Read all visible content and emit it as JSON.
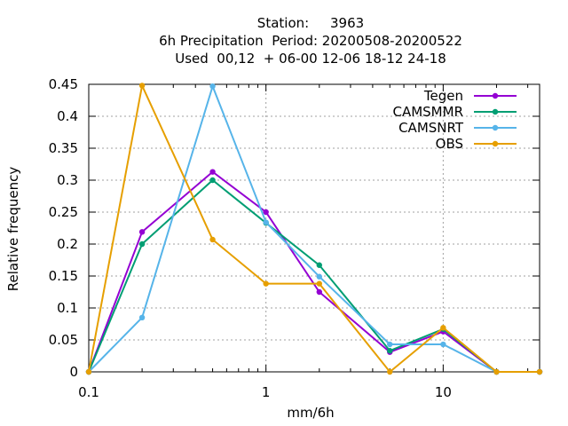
{
  "chart_data": {
    "type": "line",
    "title_lines": [
      "Station:     3963",
      "6h Precipitation  Period: 20200508-20200522",
      "Used  00,12  + 06-00 12-06 18-12 24-18"
    ],
    "xlabel": "mm/6h",
    "ylabel": "Relative frequency",
    "xscale": "log",
    "xlim": [
      0.1,
      35
    ],
    "ylim": [
      0,
      0.45
    ],
    "xticks": [
      0.1,
      1,
      10
    ],
    "xtick_labels": [
      "0.1",
      "1",
      "10"
    ],
    "yticks": [
      0,
      0.05,
      0.1,
      0.15,
      0.2,
      0.25,
      0.3,
      0.35,
      0.4,
      0.45
    ],
    "ytick_labels": [
      "0",
      "0.05",
      "0.1",
      "0.15",
      "0.2",
      "0.25",
      "0.3",
      "0.35",
      "0.4",
      "0.45"
    ],
    "grid": true,
    "legend_position": "top-right",
    "x": [
      0.1,
      0.2,
      0.5,
      1,
      2,
      5,
      10,
      20,
      35
    ],
    "series": [
      {
        "name": "Tegen",
        "color": "#9400d3",
        "values": [
          0,
          0.219,
          0.313,
          0.25,
          0.125,
          0.031,
          0.063,
          0,
          0
        ]
      },
      {
        "name": "CAMSMMR",
        "color": "#009e73",
        "values": [
          0,
          0.2,
          0.3,
          0.233,
          0.167,
          0.033,
          0.067,
          0,
          0
        ]
      },
      {
        "name": "CAMSNRT",
        "color": "#56b4e9",
        "values": [
          0,
          0.085,
          0.447,
          0.234,
          0.149,
          0.043,
          0.043,
          0,
          0
        ]
      },
      {
        "name": "OBS",
        "color": "#e69f00",
        "values": [
          0,
          0.448,
          0.207,
          0.138,
          0.138,
          0,
          0.069,
          0,
          0
        ]
      }
    ]
  }
}
